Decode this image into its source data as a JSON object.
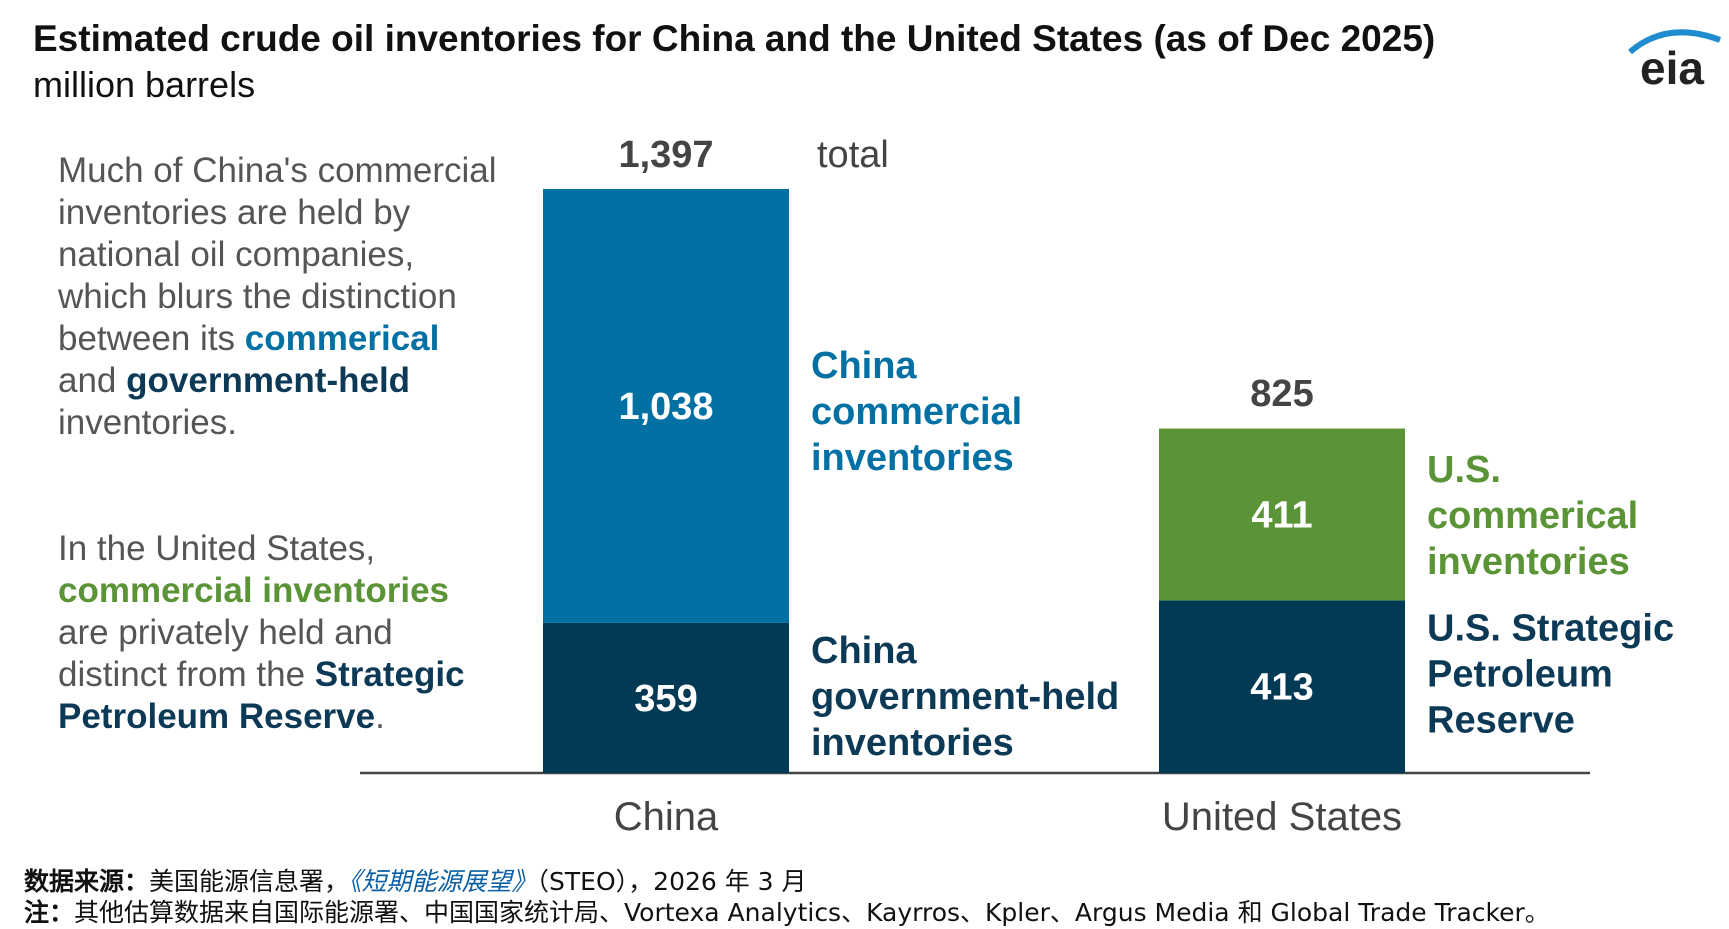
{
  "title": "Estimated crude oil inventories for China and the United States (as of Dec 2025)",
  "subtitle": "million barrels",
  "logo_text": "eia",
  "side_text_1": {
    "part1": "Much of China's commercial inventories are held by national oil companies, which blurs the distinction between its",
    "commercial": "commerical",
    "and": "and",
    "government": "government-held",
    "end": "inventories."
  },
  "side_text_2": {
    "part1": "In the United States,",
    "commercial": "commercial inventories",
    "part2": "are privately held and distinct from the",
    "strategic": "Strategic Petroleum Reserve",
    "end": "."
  },
  "source": {
    "label": "数据来源：",
    "text_before": "美国能源信息署，",
    "publication": "《短期能源展望》",
    "text_after": "（STEO），2026 年 3 月",
    "note_label": "注：",
    "note_text": "其他估算数据来自国际能源署、中国国家统计局、Vortexa Analytics、Kayrros、Kpler、Argus Media 和 Global Trade Tracker。"
  },
  "chart_data": {
    "type": "bar",
    "stacked": true,
    "categories": [
      "China",
      "United States"
    ],
    "series": [
      {
        "name": "government-held / Strategic Petroleum Reserve",
        "values": [
          359,
          413
        ],
        "labels": [
          "359",
          "413"
        ]
      },
      {
        "name": "commercial",
        "values": [
          1038,
          411
        ],
        "labels": [
          "1,038",
          "411"
        ]
      }
    ],
    "totals": [
      1397,
      825
    ],
    "total_labels": [
      "1,397",
      "825"
    ],
    "total_word": "total",
    "segment_annotations": [
      [
        "China government-held inventories",
        "China commercial inventories"
      ],
      [
        "U.S. Strategic Petroleum Reserve",
        "U.S. commerical inventories"
      ]
    ],
    "colors": {
      "China": [
        "#023a56",
        "#0270a3"
      ],
      "United States": [
        "#023a56",
        "#5b9437"
      ]
    },
    "annotation_colors": {
      "China": [
        "#0c3a56",
        "#0270a3"
      ],
      "United States": [
        "#0c3a56",
        "#5b9437"
      ]
    },
    "ylim": [
      0,
      1397
    ],
    "grid": false
  }
}
